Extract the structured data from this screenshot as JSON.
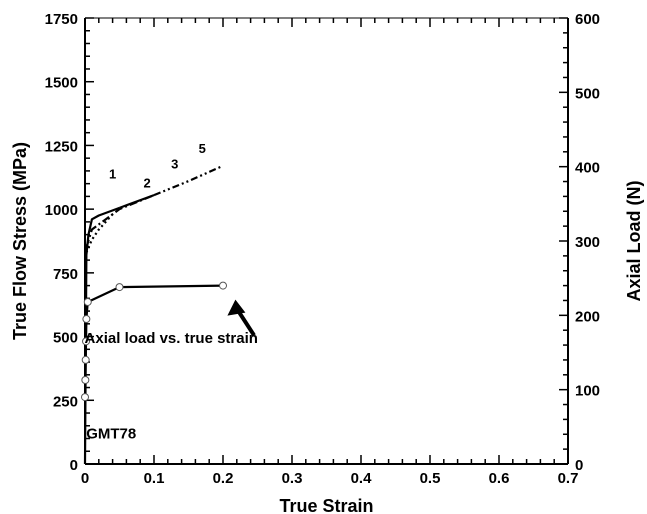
{
  "chart_data": {
    "type": "line",
    "xlabel": "True Strain",
    "ylabel_left": "True Flow Stress (MPa)",
    "ylabel_right": "Axial Load (N)",
    "xlim": [
      0,
      0.7
    ],
    "ylim_left": [
      0,
      1750
    ],
    "ylim_right": [
      0,
      600
    ],
    "x_ticks": [
      "0",
      "0.1",
      "0.2",
      "0.3",
      "0.4",
      "0.5",
      "0.6",
      "0.7"
    ],
    "y_left_ticks": [
      "0",
      "250",
      "500",
      "750",
      "1000",
      "1250",
      "1500",
      "1750"
    ],
    "y_right_ticks": [
      "0",
      "100",
      "200",
      "300",
      "400",
      "500",
      "600"
    ],
    "grid": false,
    "annotations": {
      "sample_label": "GMT78",
      "arrow_text": "Axial load vs. true strain",
      "curve_labels": [
        {
          "text": "1",
          "x": 0.04,
          "y": 1120
        },
        {
          "text": "2",
          "x": 0.09,
          "y": 1085
        },
        {
          "text": "3",
          "x": 0.13,
          "y": 1160
        },
        {
          "text": "5",
          "x": 0.17,
          "y": 1220
        }
      ]
    },
    "series": [
      {
        "axis": "left",
        "style": "solid",
        "x": [
          0,
          0.002,
          0.005,
          0.01,
          0.02,
          0.05
        ],
        "y": [
          0,
          820,
          900,
          960,
          975,
          1005
        ]
      },
      {
        "axis": "left",
        "style": "dashdot",
        "x": [
          0.002,
          0.01,
          0.03,
          0.05,
          0.1
        ],
        "y": [
          850,
          920,
          960,
          1000,
          1055
        ]
      },
      {
        "axis": "left",
        "style": "dotted",
        "x": [
          0.002,
          0.01,
          0.02,
          0.04
        ],
        "y": [
          830,
          880,
          920,
          980
        ]
      },
      {
        "axis": "left",
        "style": "solid",
        "x": [
          0.05,
          0.1
        ],
        "y": [
          1005,
          1055
        ]
      },
      {
        "axis": "left",
        "style": "dashdotdot",
        "x": [
          0.1,
          0.15,
          0.2
        ],
        "y": [
          1055,
          1110,
          1170
        ]
      },
      {
        "axis": "right",
        "style": "solid-markers",
        "x": [
          0,
          0.0005,
          0.001,
          0.0015,
          0.002,
          0.004,
          0.05,
          0.2
        ],
        "y": [
          90,
          113,
          140,
          165,
          195,
          218,
          238,
          240
        ]
      }
    ]
  }
}
